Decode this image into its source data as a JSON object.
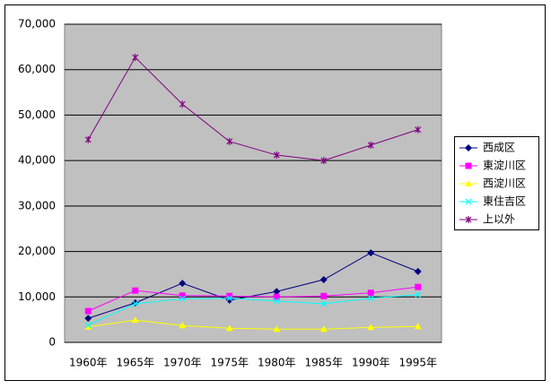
{
  "chart_data": {
    "type": "line",
    "categories": [
      "1960年",
      "1965年",
      "1970年",
      "1975年",
      "1980年",
      "1985年",
      "1990年",
      "1995年"
    ],
    "series": [
      {
        "name": "西成区",
        "color": "#000080",
        "marker": "diamond",
        "values": [
          5300,
          8700,
          13000,
          9300,
          11200,
          13800,
          19700,
          15600
        ]
      },
      {
        "name": "東淀川区",
        "color": "#ff00ff",
        "marker": "square",
        "values": [
          6900,
          11400,
          10300,
          10200,
          10000,
          10200,
          10900,
          12200
        ]
      },
      {
        "name": "西淀川区",
        "color": "#ffff00",
        "marker": "triangle",
        "values": [
          3400,
          4900,
          3700,
          3100,
          2900,
          2900,
          3300,
          3500
        ]
      },
      {
        "name": "東住吉区",
        "color": "#00ffff",
        "marker": "x",
        "values": [
          3800,
          8500,
          9600,
          9700,
          9100,
          8500,
          9700,
          10500
        ]
      },
      {
        "name": "上以外",
        "color": "#800080",
        "marker": "star",
        "values": [
          44600,
          62700,
          52400,
          44200,
          41200,
          40000,
          43400,
          46800
        ]
      }
    ],
    "ylim": [
      0,
      70000
    ],
    "yticks": [
      0,
      {
        "value": 10000,
        "label": "10,000"
      },
      {
        "value": 20000,
        "label": "20,000"
      },
      {
        "value": 30000,
        "label": "30,000"
      },
      {
        "value": 40000,
        "label": "40,000"
      },
      {
        "value": 50000,
        "label": "50,000"
      },
      {
        "value": 60000,
        "label": "60,000"
      },
      {
        "value": 70000,
        "label": "70,000"
      }
    ],
    "grid": true,
    "legend": "right"
  }
}
